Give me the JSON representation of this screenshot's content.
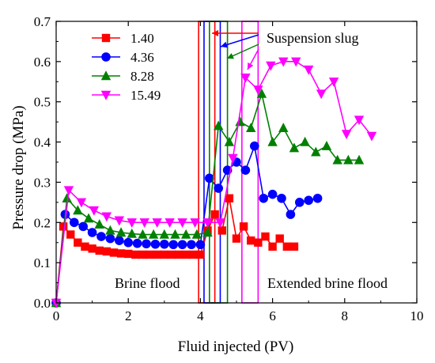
{
  "chart_data": {
    "type": "line",
    "xlabel": "Fluid injected  (PV)",
    "ylabel": "Pressure drop  (MPa)",
    "xlim": [
      0,
      10
    ],
    "ylim": [
      0,
      0.7
    ],
    "x_ticks": [
      "0",
      "2",
      "4",
      "6",
      "8",
      "10"
    ],
    "y_ticks": [
      "0.0",
      "0.1",
      "0.2",
      "0.3",
      "0.4",
      "0.5",
      "0.6",
      "0.7"
    ],
    "grid": false,
    "legend_position": "top-left",
    "series": [
      {
        "name": "1.40",
        "color": "#ff0000",
        "marker": "square",
        "x": [
          0,
          0.2,
          0.4,
          0.6,
          0.8,
          1.0,
          1.2,
          1.4,
          1.6,
          1.8,
          2.0,
          2.2,
          2.4,
          2.6,
          2.8,
          3.0,
          3.2,
          3.4,
          3.6,
          3.8,
          4.0,
          4.2,
          4.4,
          4.6,
          4.8,
          5.0,
          5.2,
          5.4,
          5.6,
          5.8,
          6.0,
          6.2,
          6.4,
          6.6
        ],
        "y": [
          0,
          0.19,
          0.17,
          0.15,
          0.14,
          0.135,
          0.13,
          0.128,
          0.125,
          0.123,
          0.122,
          0.12,
          0.12,
          0.12,
          0.12,
          0.12,
          0.12,
          0.12,
          0.12,
          0.12,
          0.12,
          0.18,
          0.22,
          0.18,
          0.26,
          0.16,
          0.19,
          0.155,
          0.15,
          0.165,
          0.14,
          0.16,
          0.14,
          0.14
        ]
      },
      {
        "name": "4.36",
        "color": "#0000ff",
        "marker": "circle",
        "x": [
          0,
          0.25,
          0.5,
          0.75,
          1.0,
          1.25,
          1.5,
          1.75,
          2.0,
          2.25,
          2.5,
          2.75,
          3.0,
          3.25,
          3.5,
          3.75,
          4.0,
          4.25,
          4.5,
          4.75,
          5.0,
          5.25,
          5.5,
          5.75,
          6.0,
          6.25,
          6.5,
          6.75,
          7.0,
          7.25
        ],
        "y": [
          0,
          0.22,
          0.2,
          0.19,
          0.175,
          0.165,
          0.16,
          0.155,
          0.15,
          0.148,
          0.147,
          0.146,
          0.146,
          0.145,
          0.145,
          0.145,
          0.145,
          0.31,
          0.285,
          0.33,
          0.35,
          0.33,
          0.39,
          0.26,
          0.27,
          0.26,
          0.22,
          0.25,
          0.255,
          0.26
        ]
      },
      {
        "name": "8.28",
        "color": "#008000",
        "marker": "triangle-up",
        "x": [
          0,
          0.3,
          0.6,
          0.9,
          1.2,
          1.5,
          1.8,
          2.1,
          2.4,
          2.7,
          3.0,
          3.3,
          3.6,
          3.9,
          4.2,
          4.5,
          4.8,
          5.1,
          5.4,
          5.7,
          6.0,
          6.3,
          6.6,
          6.9,
          7.2,
          7.5,
          7.8,
          8.1,
          8.4
        ],
        "y": [
          0,
          0.26,
          0.23,
          0.21,
          0.195,
          0.18,
          0.175,
          0.172,
          0.17,
          0.17,
          0.17,
          0.17,
          0.17,
          0.17,
          0.175,
          0.44,
          0.4,
          0.45,
          0.435,
          0.52,
          0.4,
          0.435,
          0.385,
          0.4,
          0.375,
          0.39,
          0.355,
          0.355,
          0.355
        ]
      },
      {
        "name": "15.49",
        "color": "#ff00ff",
        "marker": "triangle-down",
        "x": [
          0,
          0.35,
          0.7,
          1.05,
          1.4,
          1.75,
          2.1,
          2.45,
          2.8,
          3.15,
          3.5,
          3.85,
          4.2,
          4.55,
          4.9,
          5.25,
          5.6,
          5.95,
          6.3,
          6.65,
          7.0,
          7.35,
          7.7,
          8.05,
          8.4,
          8.75
        ],
        "y": [
          0,
          0.28,
          0.25,
          0.23,
          0.215,
          0.205,
          0.2,
          0.2,
          0.2,
          0.2,
          0.2,
          0.2,
          0.2,
          0.2,
          0.36,
          0.56,
          0.53,
          0.59,
          0.6,
          0.6,
          0.58,
          0.52,
          0.55,
          0.42,
          0.455,
          0.415
        ]
      }
    ],
    "suspension_boxes": [
      {
        "x0": 3.95,
        "x1": 4.4,
        "color": "#ff0000"
      },
      {
        "x0": 4.1,
        "x1": 4.55,
        "color": "#0000ff"
      },
      {
        "x0": 4.25,
        "x1": 4.75,
        "color": "#008000"
      },
      {
        "x0": 5.15,
        "x1": 5.6,
        "color": "#ff00ff"
      }
    ],
    "annotations": {
      "suspension_slug": "Suspension slug",
      "brine_flood": "Brine flood",
      "extended_brine_flood": "Extended brine flood"
    }
  }
}
